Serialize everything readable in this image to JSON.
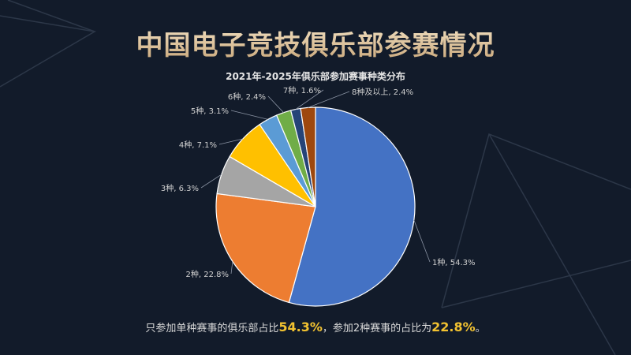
{
  "title": "中国电子竞技俱乐部参赛情况",
  "chart_data": {
    "type": "pie",
    "title": "2021年-2025年俱乐部参加赛事种类分布",
    "categories": [
      "1种",
      "2种",
      "3种",
      "4种",
      "5种",
      "6种",
      "7种",
      "8种及以上"
    ],
    "values": [
      54.3,
      22.8,
      6.3,
      7.1,
      3.1,
      2.4,
      1.6,
      2.4
    ],
    "labels": [
      "1种, 54.3%",
      "2种, 22.8%",
      "3种, 6.3%",
      "4种, 7.1%",
      "5种, 3.1%",
      "6种, 2.4%",
      "7种, 1.6%",
      "8种及以上, 2.4%"
    ],
    "colors": [
      "#4472c4",
      "#ed7d31",
      "#a5a5a5",
      "#ffc000",
      "#5b9bd5",
      "#70ad47",
      "#264478",
      "#9e480e"
    ],
    "start": "12 o'clock, clockwise",
    "legend": "none"
  },
  "note": {
    "part1": "只参加单种赛事的俱乐部占比",
    "value1": "54.3%",
    "part2": "，参加2种赛事的占比为",
    "value2": "22.8%",
    "part3": "。"
  }
}
